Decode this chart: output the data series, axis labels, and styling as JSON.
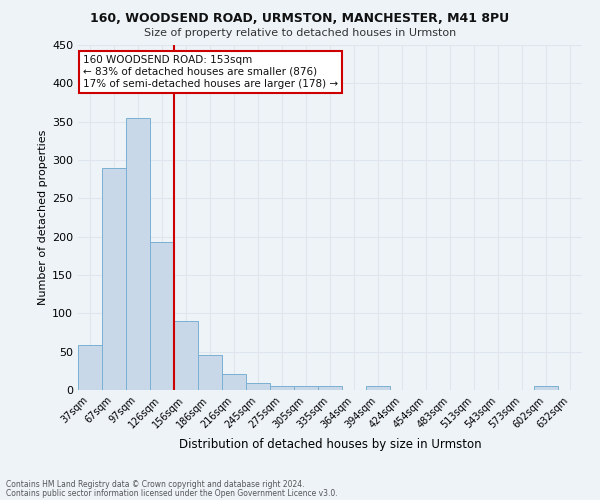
{
  "title1": "160, WOODSEND ROAD, URMSTON, MANCHESTER, M41 8PU",
  "title2": "Size of property relative to detached houses in Urmston",
  "xlabel": "Distribution of detached houses by size in Urmston",
  "ylabel": "Number of detached properties",
  "footnote1": "Contains HM Land Registry data © Crown copyright and database right 2024.",
  "footnote2": "Contains public sector information licensed under the Open Government Licence v3.0.",
  "bin_labels": [
    "37sqm",
    "67sqm",
    "97sqm",
    "126sqm",
    "156sqm",
    "186sqm",
    "216sqm",
    "245sqm",
    "275sqm",
    "305sqm",
    "335sqm",
    "364sqm",
    "394sqm",
    "424sqm",
    "454sqm",
    "483sqm",
    "513sqm",
    "543sqm",
    "573sqm",
    "602sqm",
    "632sqm"
  ],
  "bin_values": [
    59,
    289,
    355,
    193,
    90,
    46,
    21,
    9,
    5,
    5,
    5,
    0,
    5,
    0,
    0,
    0,
    0,
    0,
    0,
    5,
    0
  ],
  "bar_color": "#c8d8e8",
  "bar_edge_color": "#7ab0d4",
  "grid_color": "#dde6ef",
  "bg_color": "#eef3f8",
  "vline_x": 3.5,
  "vline_color": "#cc0000",
  "annotation_text": "160 WOODSEND ROAD: 153sqm\n← 83% of detached houses are smaller (876)\n17% of semi-detached houses are larger (178) →",
  "annotation_box_color": "#ffffff",
  "annotation_box_edge": "#cc0000",
  "ylim": [
    0,
    450
  ],
  "yticks": [
    0,
    50,
    100,
    150,
    200,
    250,
    300,
    350,
    400,
    450
  ]
}
